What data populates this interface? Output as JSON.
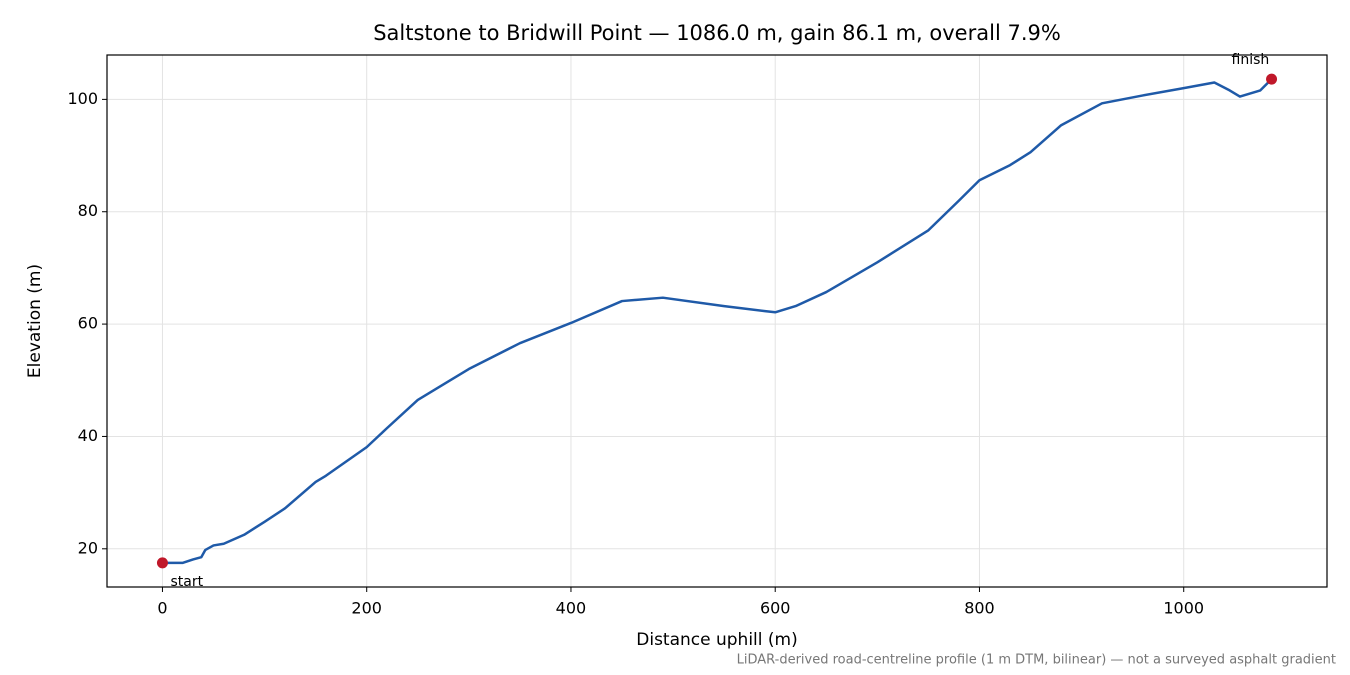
{
  "chart_data": {
    "type": "line",
    "title": "Saltstone to Bridwill Point — 1086.0 m, gain 86.1 m, overall 7.9%",
    "x_label": "Distance uphill (m)",
    "y_label": "Elevation (m)",
    "x": [
      0,
      20,
      30,
      38,
      42,
      50,
      60,
      80,
      100,
      120,
      150,
      160,
      200,
      220,
      250,
      300,
      350,
      400,
      450,
      490,
      550,
      590,
      600,
      620,
      650,
      700,
      750,
      780,
      800,
      830,
      850,
      880,
      920,
      960,
      1000,
      1030,
      1045,
      1055,
      1075,
      1086
    ],
    "values": [
      17.5,
      17.5,
      18.1,
      18.5,
      19.8,
      20.6,
      20.9,
      22.5,
      24.8,
      27.2,
      31.9,
      33.0,
      38.1,
      41.5,
      46.5,
      52.0,
      56.6,
      60.2,
      64.1,
      64.7,
      63.2,
      62.3,
      62.1,
      63.2,
      65.7,
      71.0,
      76.7,
      82.0,
      85.6,
      88.3,
      90.6,
      95.4,
      99.3,
      100.7,
      102.0,
      103.0,
      101.6,
      100.5,
      101.6,
      103.6
    ],
    "color": "#1f5aa8",
    "annotations": [
      {
        "text": "start",
        "x": 0,
        "y": 17.5
      },
      {
        "text": "finish",
        "x": 1086,
        "y": 103.6
      }
    ],
    "marker_color": "#c0182a",
    "xlim": [
      -54.3,
      1140.3
    ],
    "ylim": [
      13.2,
      107.9
    ],
    "xticks": [
      0,
      200,
      400,
      600,
      800,
      1000
    ],
    "yticks": [
      20,
      40,
      60,
      80,
      100
    ],
    "grid": true,
    "footnote": "LiDAR-derived road-centreline profile (1 m DTM, bilinear) — not a surveyed asphalt gradient"
  }
}
